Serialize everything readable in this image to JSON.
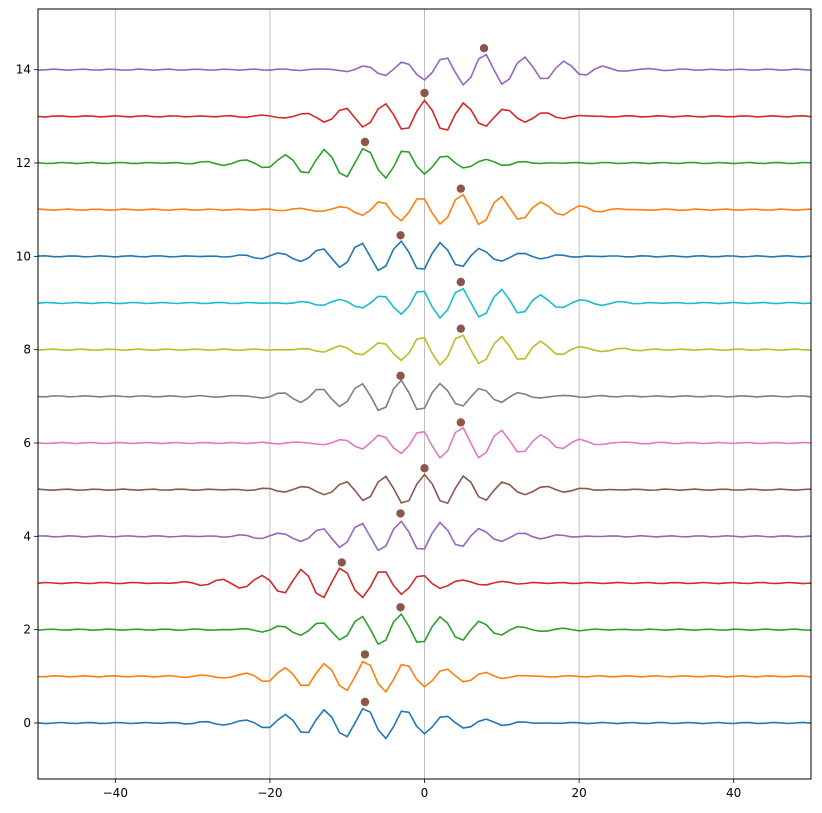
{
  "chart_data": {
    "type": "line",
    "title": "",
    "xlabel": "",
    "ylabel": "",
    "xlim": [
      -50,
      50
    ],
    "ylim": [
      -1.2,
      15.3
    ],
    "grid": "vertical",
    "x_ticks": [
      -40,
      -20,
      0,
      20,
      40
    ],
    "y_ticks": [
      0,
      2,
      4,
      6,
      8,
      10,
      12,
      14
    ],
    "x_tick_labels": [
      "−40",
      "−20",
      "0",
      "20",
      "40"
    ],
    "y_tick_labels": [
      "0",
      "2",
      "4",
      "6",
      "8",
      "10",
      "12",
      "14"
    ],
    "marker_color": "#8c564b",
    "waveform": {
      "description_note": "",
      "envelope_sigma": 9,
      "period": 5.2,
      "amplitude": 0.45
    },
    "series": [
      {
        "offset": 0,
        "color": "#1f77b4",
        "peak_x": -7.7,
        "peak_y": 0.45,
        "center": -7.7,
        "phase": 0.0
      },
      {
        "offset": 1,
        "color": "#ff7f0e",
        "peak_x": -7.7,
        "peak_y": 1.47,
        "center": -7.7,
        "phase": 0.0
      },
      {
        "offset": 2,
        "color": "#2ca02c",
        "peak_x": -3.1,
        "peak_y": 2.48,
        "center": -3.1,
        "phase": 0.0
      },
      {
        "offset": 3,
        "color": "#d62728",
        "peak_x": -10.7,
        "peak_y": 3.44,
        "center": -10.7,
        "phase": 0.0
      },
      {
        "offset": 4,
        "color": "#9467bd",
        "peak_x": -3.1,
        "peak_y": 4.49,
        "center": -3.1,
        "phase": 0.0
      },
      {
        "offset": 5,
        "color": "#8c564b",
        "peak_x": 0.0,
        "peak_y": 5.46,
        "center": 0.0,
        "phase": 0.0
      },
      {
        "offset": 6,
        "color": "#e377c2",
        "peak_x": 4.7,
        "peak_y": 6.44,
        "center": 4.7,
        "phase": 0.0
      },
      {
        "offset": 7,
        "color": "#7f7f7f",
        "peak_x": -3.1,
        "peak_y": 7.44,
        "center": -3.1,
        "phase": 0.0
      },
      {
        "offset": 8,
        "color": "#bcbd22",
        "peak_x": 4.7,
        "peak_y": 8.45,
        "center": 4.7,
        "phase": 0.0
      },
      {
        "offset": 9,
        "color": "#17becf",
        "peak_x": 4.7,
        "peak_y": 9.45,
        "center": 4.7,
        "phase": 0.0
      },
      {
        "offset": 10,
        "color": "#1f77b4",
        "peak_x": -3.1,
        "peak_y": 10.45,
        "center": -3.1,
        "phase": 0.0
      },
      {
        "offset": 11,
        "color": "#ff7f0e",
        "peak_x": 4.7,
        "peak_y": 11.45,
        "center": 4.7,
        "phase": 0.0
      },
      {
        "offset": 12,
        "color": "#2ca02c",
        "peak_x": -7.7,
        "peak_y": 12.45,
        "center": -7.7,
        "phase": 0.0
      },
      {
        "offset": 13,
        "color": "#d62728",
        "peak_x": 0.0,
        "peak_y": 13.5,
        "center": 0.0,
        "phase": 0.0
      },
      {
        "offset": 14,
        "color": "#9467bd",
        "peak_x": 7.7,
        "peak_y": 14.46,
        "center": 7.7,
        "phase": 0.0
      }
    ]
  }
}
